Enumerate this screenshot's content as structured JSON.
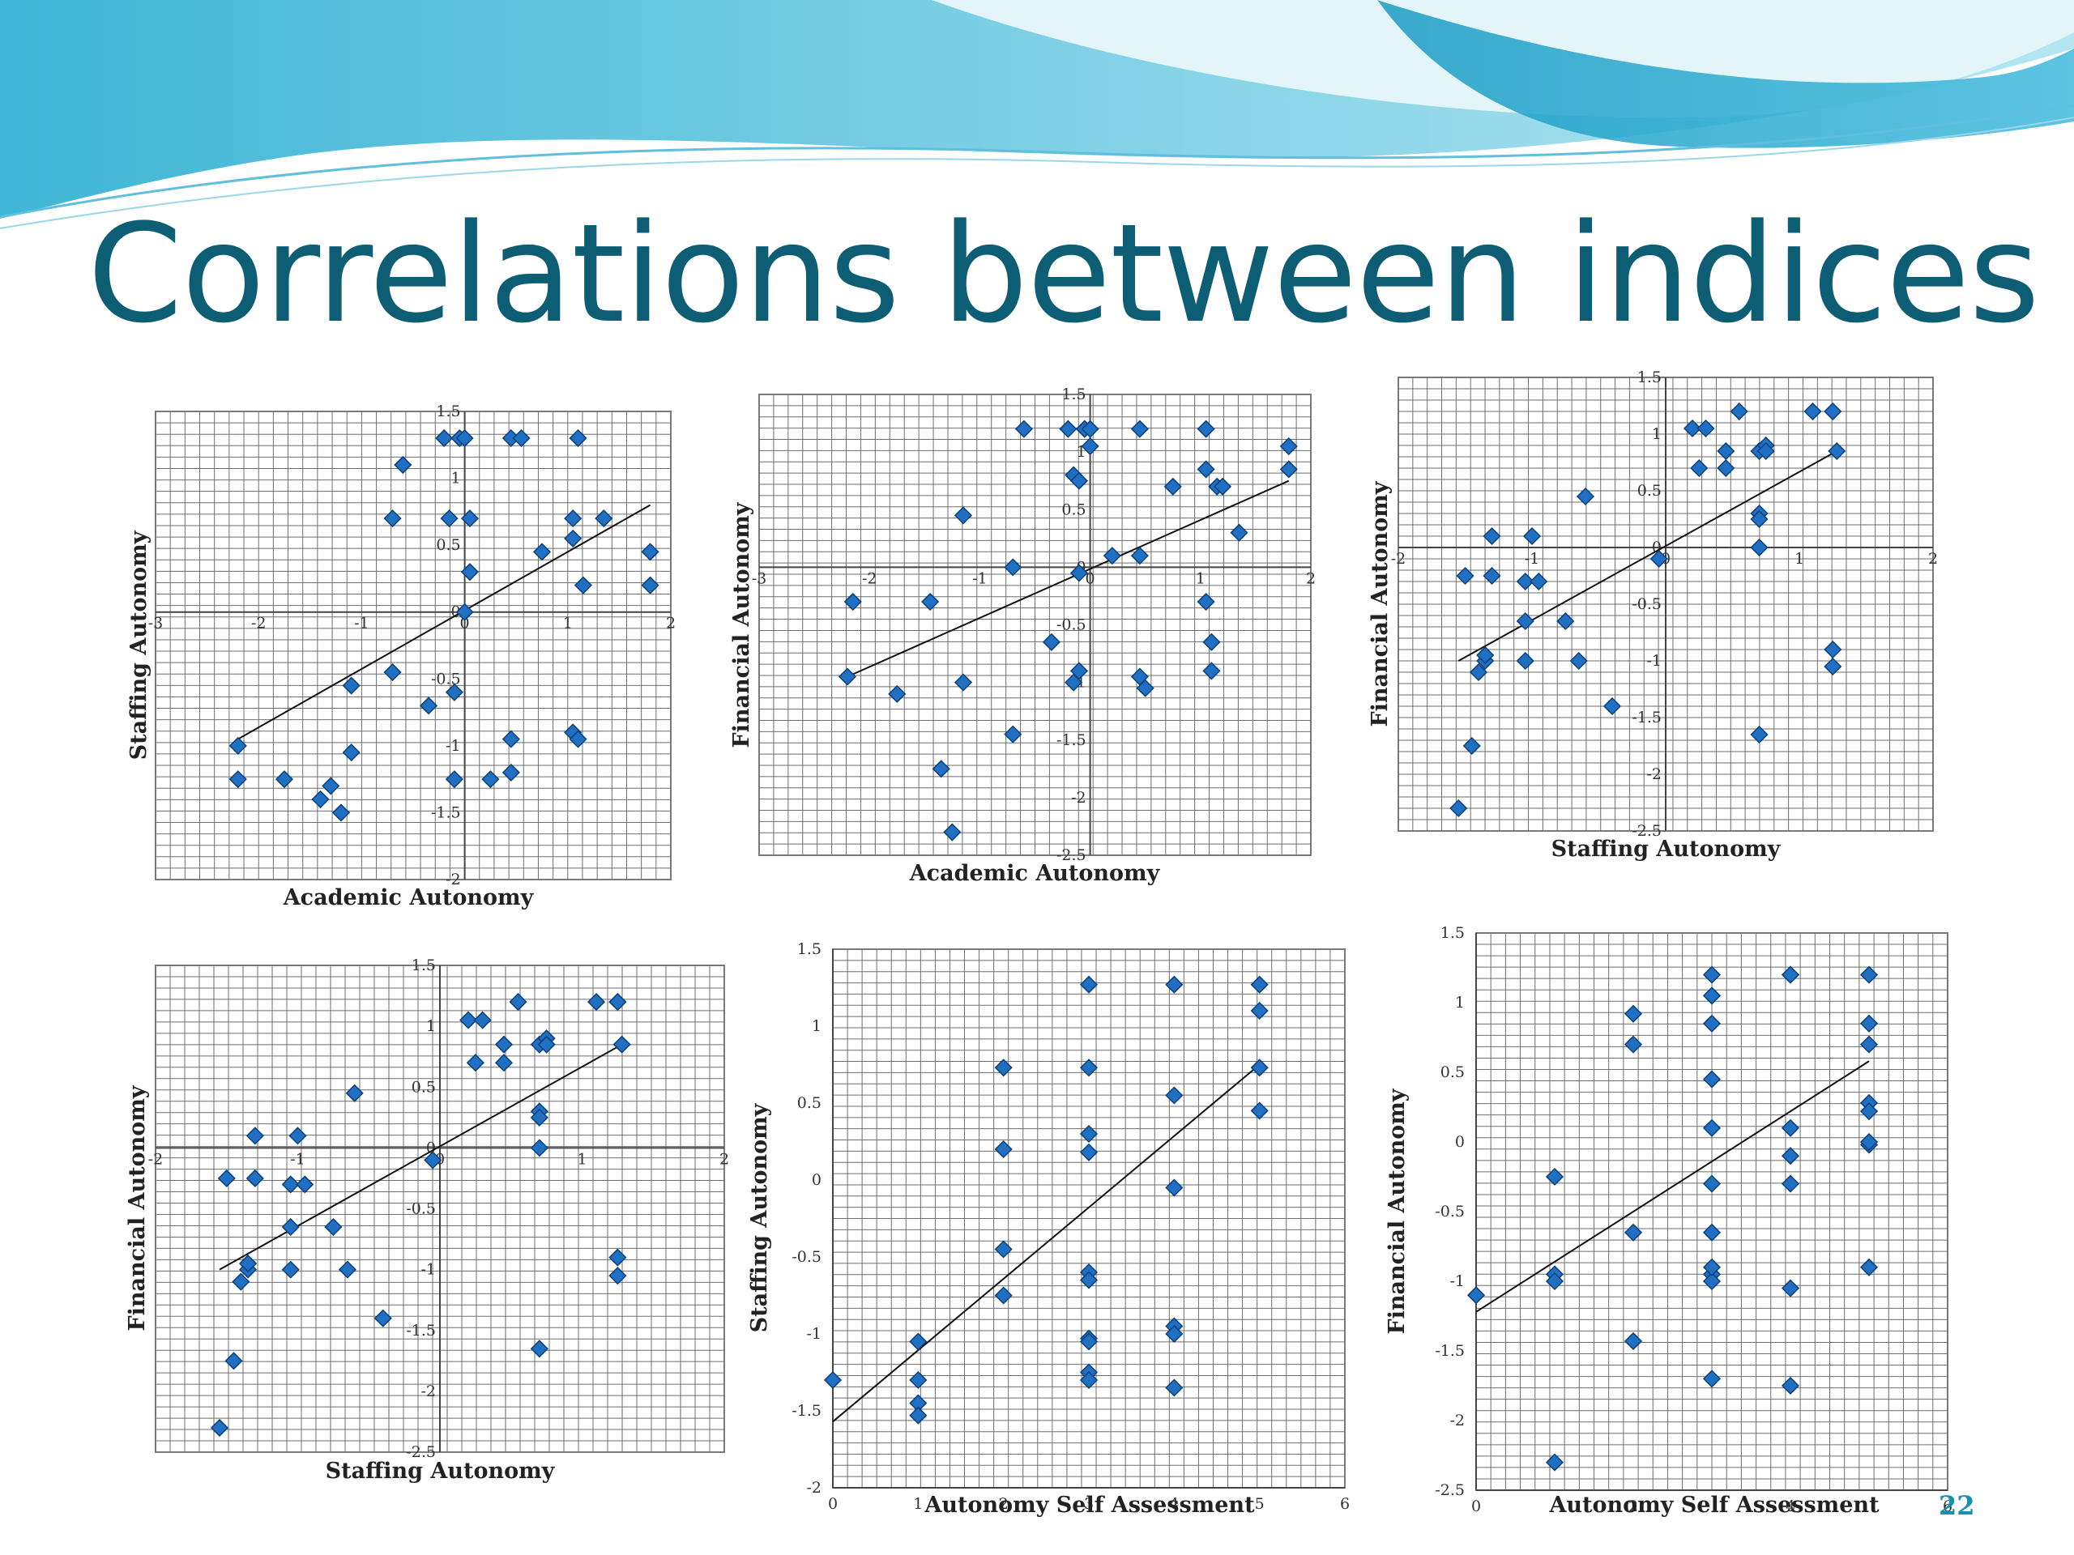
{
  "slide": {
    "title": "Correlations between indices",
    "number": "22",
    "colors": {
      "title": "#0d5e74",
      "marker": "#1f6fc2",
      "marker_stroke": "#0c3f7a",
      "page_number": "#1a8fb0"
    }
  },
  "chart_data": [
    {
      "type": "scatter",
      "xlabel": "Academic Autonomy",
      "ylabel": "Staffing Autonomy",
      "xlim": [
        -3,
        2
      ],
      "ylim": [
        -2,
        1.5
      ],
      "xticks": [
        -3,
        -2,
        -1,
        0,
        1,
        2
      ],
      "yticks": [
        -2,
        -1.5,
        -1,
        -0.5,
        0,
        0.5,
        1,
        1.5
      ],
      "axes_cross": true,
      "grid": "minor",
      "trendline": [
        [
          -2.2,
          -0.95
        ],
        [
          1.8,
          0.8
        ]
      ],
      "x": [
        -2.2,
        -2.2,
        -1.75,
        -1.4,
        -1.3,
        -1.2,
        -1.1,
        -1.1,
        -0.7,
        -0.7,
        -0.6,
        -0.35,
        -0.2,
        -0.15,
        -0.1,
        -0.1,
        -0.05,
        0,
        0,
        0.05,
        0.05,
        0.25,
        0.45,
        0.45,
        0.45,
        0.55,
        0.75,
        1.05,
        1.05,
        1.05,
        1.1,
        1.1,
        1.15,
        1.35,
        1.8,
        1.8
      ],
      "y": [
        -1.25,
        -1.0,
        -1.25,
        -1.4,
        -1.3,
        -1.5,
        -1.05,
        -0.55,
        -0.45,
        0.7,
        1.1,
        -0.7,
        1.3,
        0.7,
        -0.6,
        -1.25,
        1.3,
        0,
        1.3,
        0.3,
        0.7,
        -1.25,
        1.3,
        -1.2,
        -0.95,
        1.3,
        0.45,
        0.55,
        0.7,
        -0.9,
        1.3,
        -0.95,
        0.2,
        0.7,
        0.2,
        0.45
      ]
    },
    {
      "type": "scatter",
      "xlabel": "Academic Autonomy",
      "ylabel": "Financial Autonomy",
      "xlim": [
        -3,
        2
      ],
      "ylim": [
        -2.5,
        1.5
      ],
      "xticks": [
        -3,
        -2,
        -1,
        0,
        1,
        2
      ],
      "yticks": [
        -2.5,
        -2,
        -1.5,
        -1,
        -0.5,
        0,
        0.5,
        1,
        1.5
      ],
      "axes_cross": true,
      "grid": "minor",
      "trendline": [
        [
          -2.2,
          -0.95
        ],
        [
          1.8,
          0.75
        ]
      ],
      "x": [
        -2.2,
        -2.15,
        -1.75,
        -1.45,
        -1.35,
        -1.25,
        -1.15,
        -1.15,
        -0.7,
        -0.7,
        -0.6,
        -0.35,
        -0.2,
        -0.15,
        -0.15,
        -0.1,
        -0.1,
        -0.1,
        -0.05,
        -0.05,
        0,
        0,
        0.2,
        0.45,
        0.45,
        0.45,
        0.5,
        0.75,
        1.05,
        1.05,
        1.05,
        1.1,
        1.1,
        1.15,
        1.2,
        1.35,
        1.8,
        1.8
      ],
      "y": [
        -0.95,
        -0.3,
        -1.1,
        -0.3,
        -1.75,
        -2.3,
        -1.0,
        0.45,
        0,
        -1.45,
        1.2,
        -0.65,
        1.2,
        0.8,
        -1.0,
        0.75,
        -0.9,
        -0.05,
        1.2,
        1.2,
        1.2,
        1.05,
        0.1,
        1.2,
        -0.95,
        0.1,
        -1.05,
        0.7,
        0.85,
        -0.3,
        1.2,
        -0.65,
        -0.9,
        0.7,
        0.7,
        0.3,
        1.05,
        0.85
      ]
    },
    {
      "type": "scatter",
      "xlabel": "Staffing Autonomy",
      "ylabel": "Financial Autonomy",
      "xlim": [
        -2,
        2
      ],
      "ylim": [
        -2.5,
        1.5
      ],
      "xticks": [
        -2,
        -1,
        0,
        1,
        2
      ],
      "yticks": [
        -2.5,
        -2,
        -1.5,
        -1,
        -0.5,
        0,
        0.5,
        1,
        1.5
      ],
      "axes_cross": true,
      "grid": "minor",
      "trendline": [
        [
          -1.55,
          -1.0
        ],
        [
          1.28,
          0.85
        ]
      ],
      "x": [
        -1.55,
        -1.5,
        -1.45,
        -1.4,
        -1.35,
        -1.35,
        -1.35,
        -1.3,
        -1.3,
        -1.05,
        -1.05,
        -1.05,
        -1.0,
        -0.95,
        -0.75,
        -0.65,
        -0.6,
        -0.4,
        -0.05,
        0.2,
        0.25,
        0.3,
        0.45,
        0.45,
        0.55,
        0.7,
        0.7,
        0.7,
        0.7,
        0.7,
        0.75,
        0.75,
        1.1,
        1.25,
        1.25,
        1.25,
        1.25,
        1.28
      ],
      "y": [
        -2.3,
        -0.25,
        -1.75,
        -1.1,
        -0.95,
        -1.0,
        -0.95,
        0.1,
        -0.25,
        -1.0,
        -0.65,
        -0.3,
        0.1,
        -0.3,
        -0.65,
        -1.0,
        0.45,
        -1.4,
        -0.1,
        1.05,
        0.7,
        1.05,
        0.85,
        0.7,
        1.2,
        -1.65,
        0.85,
        0.3,
        0.25,
        0,
        0.9,
        0.85,
        1.2,
        1.2,
        1.2,
        -0.9,
        -1.05,
        0.85
      ]
    },
    {
      "type": "scatter",
      "xlabel": "Staffing Autonomy",
      "ylabel": "Financial Autonomy",
      "xlim": [
        -2,
        2
      ],
      "ylim": [
        -2.5,
        1.5
      ],
      "xticks": [
        -2,
        -1,
        0,
        1,
        2
      ],
      "yticks": [
        -2.5,
        -2,
        -1.5,
        -1,
        -0.5,
        0,
        0.5,
        1,
        1.5
      ],
      "axes_cross": true,
      "grid": "minor",
      "trendline": [
        [
          -1.55,
          -1.0
        ],
        [
          1.28,
          0.85
        ]
      ],
      "x": [
        -1.55,
        -1.5,
        -1.45,
        -1.4,
        -1.35,
        -1.35,
        -1.35,
        -1.3,
        -1.3,
        -1.05,
        -1.05,
        -1.05,
        -1.0,
        -0.95,
        -0.75,
        -0.65,
        -0.6,
        -0.4,
        -0.05,
        0.2,
        0.25,
        0.3,
        0.45,
        0.45,
        0.55,
        0.7,
        0.7,
        0.7,
        0.7,
        0.7,
        0.75,
        0.75,
        1.1,
        1.25,
        1.25,
        1.25,
        1.25,
        1.28
      ],
      "y": [
        -2.3,
        -0.25,
        -1.75,
        -1.1,
        -0.95,
        -1.0,
        -0.95,
        0.1,
        -0.25,
        -1.0,
        -0.65,
        -0.3,
        0.1,
        -0.3,
        -0.65,
        -1.0,
        0.45,
        -1.4,
        -0.1,
        1.05,
        0.7,
        1.05,
        0.85,
        0.7,
        1.2,
        -1.65,
        0.85,
        0.3,
        0.25,
        0,
        0.9,
        0.85,
        1.2,
        1.2,
        1.2,
        -0.9,
        -1.05,
        0.85
      ]
    },
    {
      "type": "scatter",
      "xlabel": "Autonomy Self Assessment",
      "ylabel": "Staffing Autonomy",
      "xlim": [
        0,
        6
      ],
      "ylim": [
        -2,
        1.5
      ],
      "xticks": [
        0,
        1,
        2,
        3,
        4,
        5,
        6
      ],
      "yticks": [
        -2,
        -1.5,
        -1,
        -0.5,
        0,
        0.5,
        1,
        1.5
      ],
      "axes_cross": false,
      "grid": "minor",
      "trendline": [
        [
          0,
          -1.57
        ],
        [
          5,
          0.75
        ]
      ],
      "x": [
        0,
        1,
        1,
        1,
        1,
        2,
        2,
        2,
        2,
        3,
        3,
        3,
        3,
        3,
        3,
        3,
        3,
        3,
        3,
        4,
        4,
        4,
        4,
        4,
        4,
        5,
        5,
        5,
        5
      ],
      "y": [
        -1.3,
        -1.05,
        -1.3,
        -1.45,
        -1.53,
        0.73,
        0.2,
        -0.45,
        -0.75,
        1.27,
        0.73,
        0.3,
        0.18,
        -0.6,
        -0.65,
        -1.03,
        -1.25,
        -1.3,
        -1.05,
        1.27,
        0.55,
        -0.05,
        -0.95,
        -1.0,
        -1.35,
        1.27,
        1.1,
        0.73,
        0.45
      ]
    },
    {
      "type": "scatter",
      "xlabel": "Autonomy Self Assessment",
      "ylabel": "Financial Autonomy",
      "xlim": [
        0,
        6
      ],
      "ylim": [
        -2.5,
        1.5
      ],
      "xticks": [
        0,
        2,
        4,
        6
      ],
      "yticks": [
        -2.5,
        -2,
        -1.5,
        -1,
        -0.5,
        0,
        0.5,
        1,
        1.5
      ],
      "axes_cross": false,
      "grid": "minor",
      "trendline": [
        [
          0,
          -1.22
        ],
        [
          5,
          0.58
        ]
      ],
      "x": [
        0,
        1,
        1,
        1,
        1,
        2,
        2,
        2,
        2,
        3,
        3,
        3,
        3,
        3,
        3,
        3,
        3,
        3,
        3,
        3,
        3,
        4,
        4,
        4,
        4,
        4,
        4,
        4,
        5,
        5,
        5,
        5,
        5,
        5,
        5,
        5
      ],
      "y": [
        -1.1,
        -0.25,
        -0.95,
        -1.0,
        -2.3,
        0.92,
        0.7,
        -0.65,
        -1.43,
        1.2,
        1.05,
        1.05,
        0.85,
        0.45,
        0.1,
        -0.3,
        -0.65,
        -0.95,
        -1.0,
        -1.7,
        -0.9,
        1.2,
        0.1,
        -0.1,
        -0.3,
        -1.05,
        -1.75,
        1.2,
        1.2,
        0.85,
        0.7,
        0.28,
        0.22,
        -0.02,
        -0.9,
        0
      ]
    }
  ]
}
